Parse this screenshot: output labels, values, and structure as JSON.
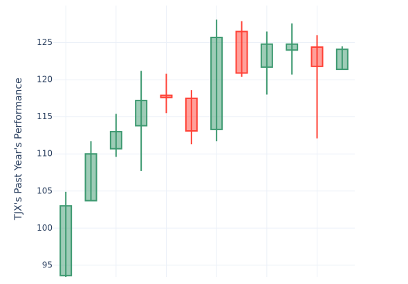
{
  "chart_data": {
    "type": "candlestick",
    "y_label": "TJX's Past Year's Performance",
    "categories": [
      null,
      null,
      null,
      null,
      null,
      null,
      null,
      null,
      null,
      null,
      null,
      null
    ],
    "series": [
      {
        "open": [
          93.6,
          103.7,
          110.7,
          113.8,
          117.9,
          117.5,
          113.3,
          126.5,
          121.7,
          124.0,
          124.4,
          121.4
        ],
        "high": [
          104.9,
          111.7,
          115.4,
          121.2,
          120.8,
          118.6,
          128.1,
          127.9,
          126.5,
          127.6,
          126.0,
          124.5
        ],
        "low": [
          93.4,
          103.7,
          109.6,
          107.7,
          115.5,
          111.3,
          111.7,
          120.4,
          118.0,
          120.7,
          112.1,
          121.4
        ],
        "close": [
          103.0,
          110.0,
          113.0,
          117.2,
          117.6,
          113.1,
          125.7,
          120.9,
          124.8,
          124.8,
          121.8,
          124.1
        ]
      }
    ],
    "increasing_color": "#3d9970",
    "decreasing_color": "#ff4136",
    "ylim": [
      93.4,
      130
    ],
    "yticks": [
      95,
      100,
      105,
      110,
      115,
      120,
      125
    ],
    "grid": true
  }
}
